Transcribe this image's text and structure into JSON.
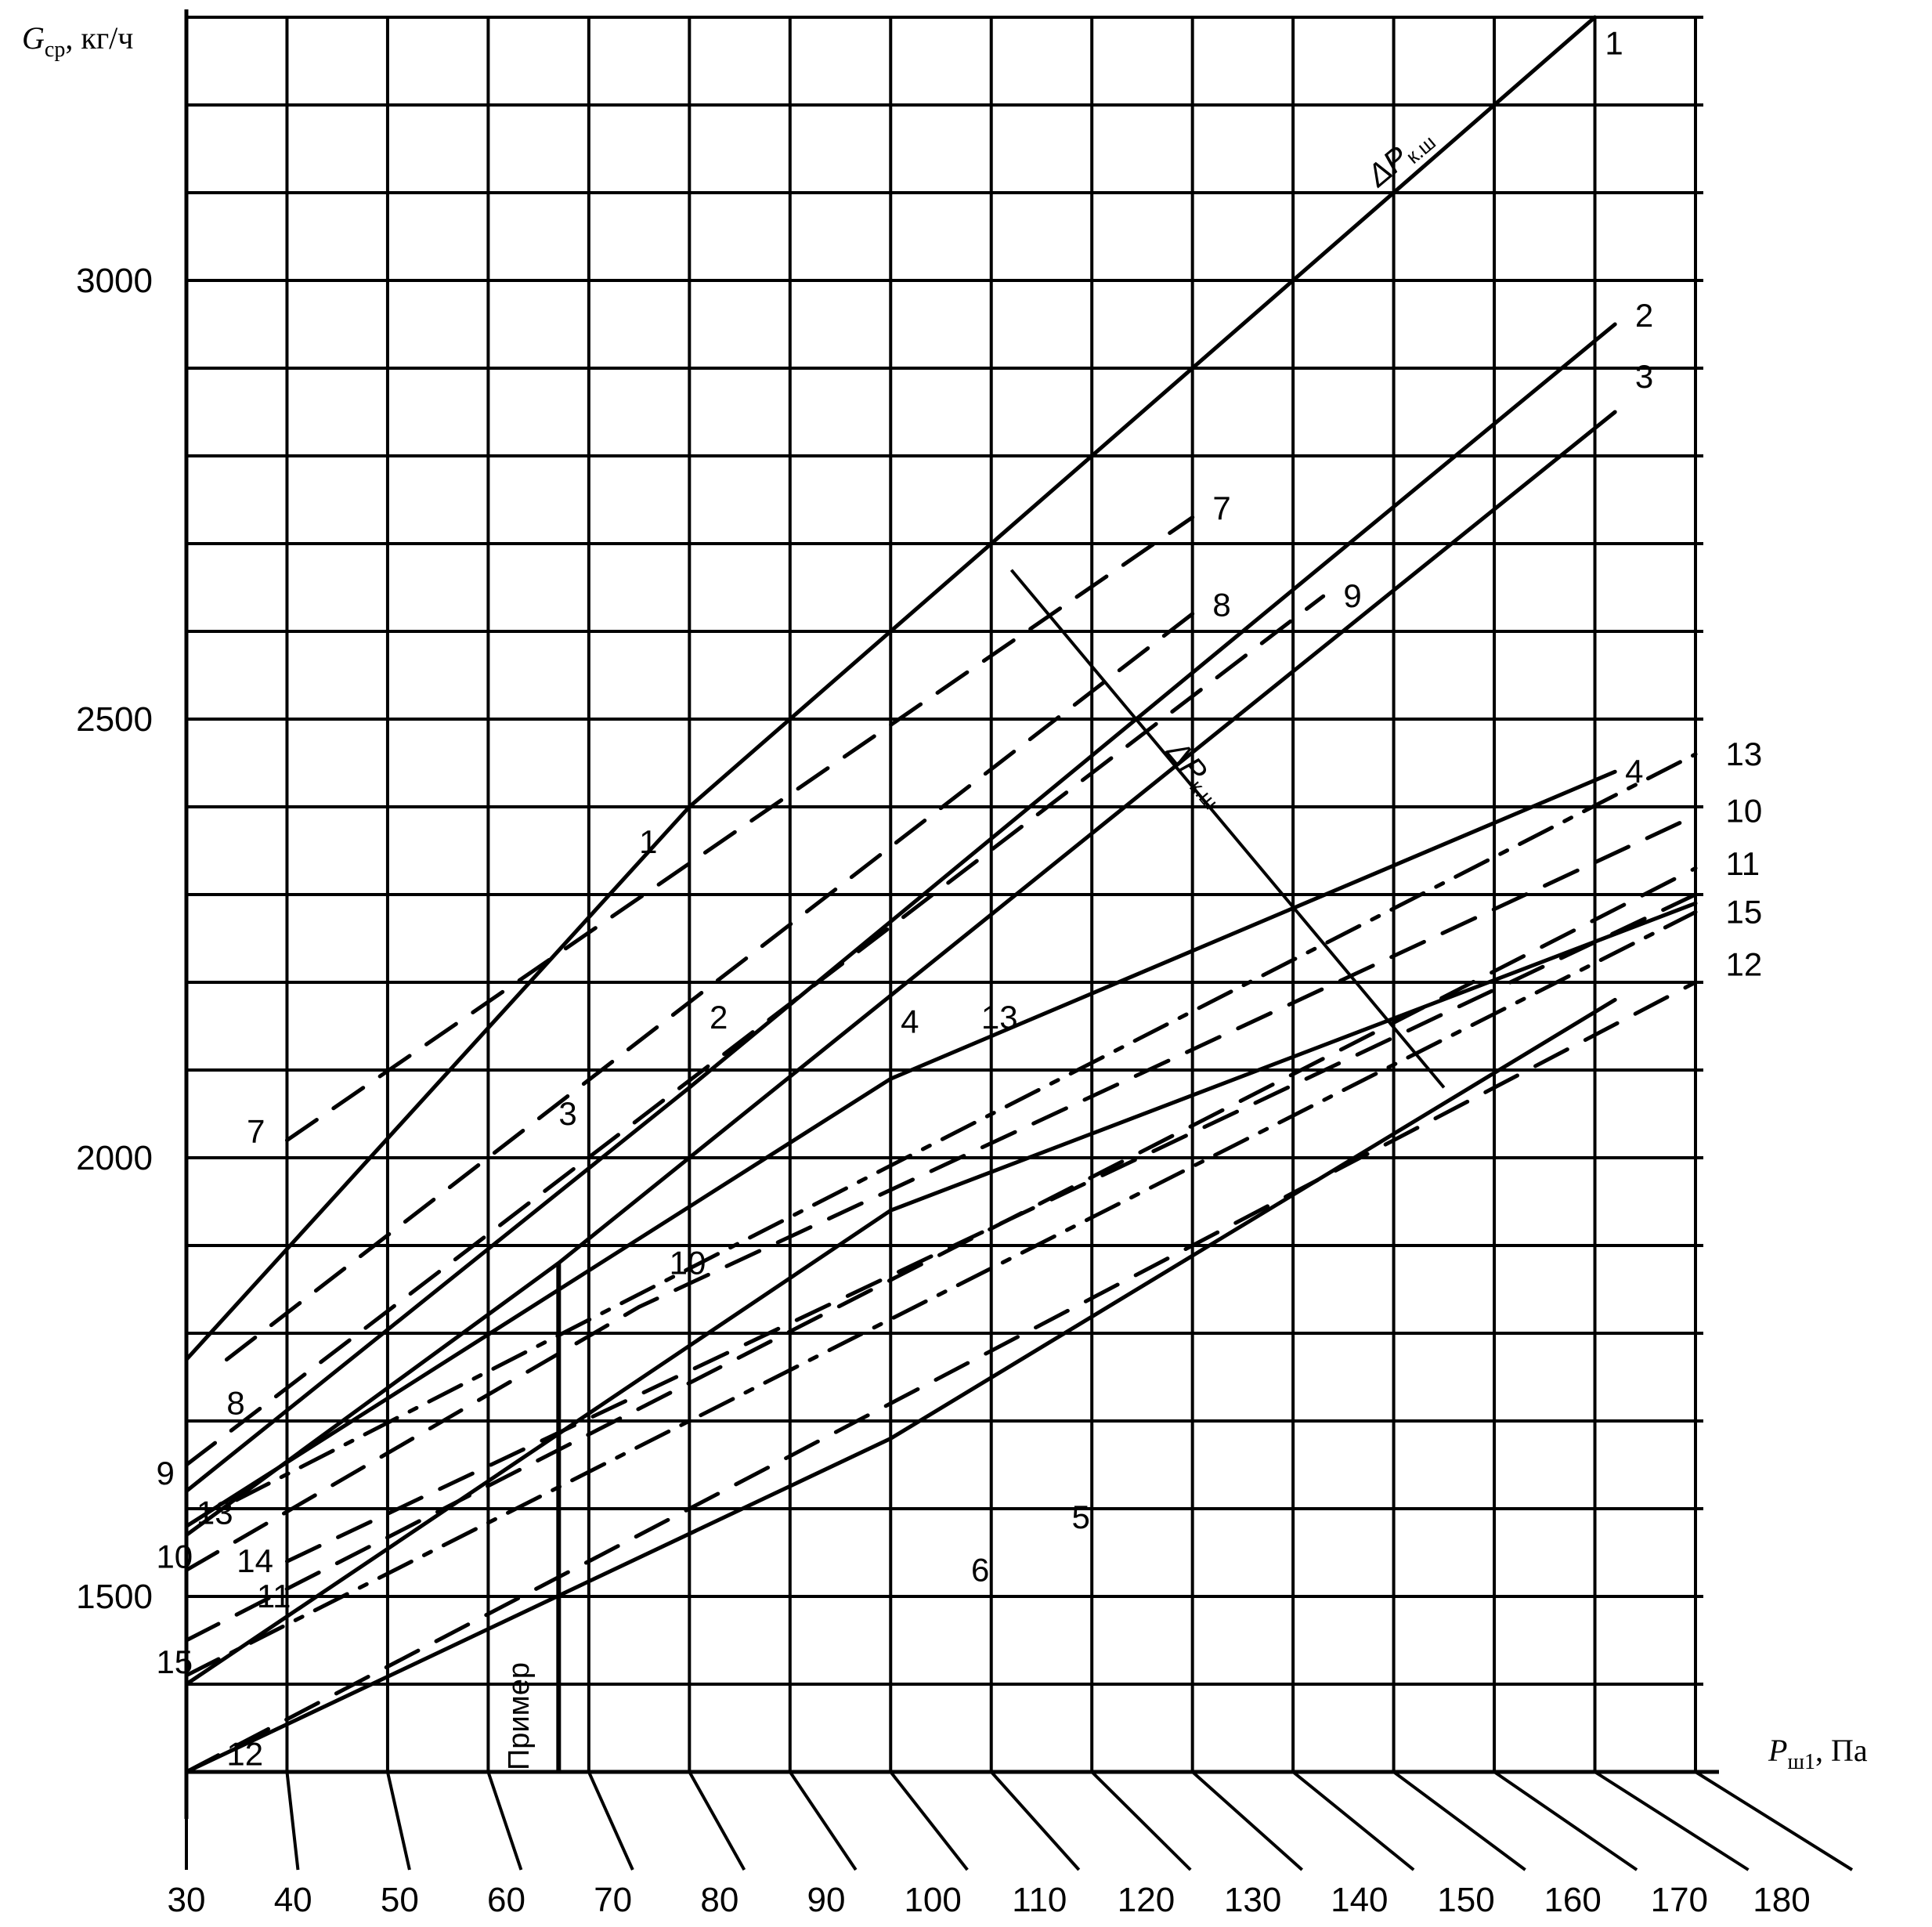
{
  "chart_data": {
    "type": "line",
    "x_axis": {
      "label_symbol": "P",
      "label_subscript": "ш1",
      "label_unit": ", Па",
      "range": [
        30,
        180
      ],
      "ticks": [
        30,
        40,
        50,
        60,
        70,
        80,
        90,
        100,
        110,
        120,
        130,
        140,
        150,
        160,
        170,
        180
      ],
      "tick_labels": [
        "30",
        "40",
        "50",
        "60",
        "70",
        "80",
        "90",
        "100",
        "110",
        "120",
        "130",
        "140",
        "150",
        "160",
        "170",
        "180"
      ]
    },
    "y_axis": {
      "label_symbol": "G",
      "label_subscript": "ср",
      "label_unit": ", кг/ч",
      "range": [
        1300,
        3300
      ],
      "gridline_step": 100,
      "ticks": [
        1500,
        2000,
        2500,
        3000
      ],
      "tick_labels": [
        "1500",
        "2000",
        "2500",
        "3000"
      ]
    },
    "grid": true,
    "series": [
      {
        "name": "1",
        "style": "solid",
        "points": [
          [
            30,
            1770
          ],
          [
            80,
            2400
          ],
          [
            170,
            3300
          ]
        ]
      },
      {
        "name": "2",
        "style": "solid",
        "points": [
          [
            30,
            1620
          ],
          [
            80,
            2080
          ],
          [
            172,
            2950
          ]
        ]
      },
      {
        "name": "3",
        "style": "solid",
        "points": [
          [
            30,
            1570
          ],
          [
            67,
            1880
          ],
          [
            172,
            2850
          ]
        ]
      },
      {
        "name": "4",
        "style": "solid",
        "points": [
          [
            30,
            1580
          ],
          [
            100,
            2090
          ],
          [
            172,
            2440
          ]
        ]
      },
      {
        "name": "5",
        "style": "solid",
        "points": [
          [
            30,
            1400
          ],
          [
            100,
            1940
          ],
          [
            180,
            2290
          ]
        ]
      },
      {
        "name": "6",
        "style": "solid",
        "points": [
          [
            30,
            1300
          ],
          [
            100,
            1680
          ],
          [
            172,
            2180
          ]
        ]
      },
      {
        "name": "7",
        "style": "dashed",
        "points": [
          [
            40,
            2020
          ],
          [
            130,
            2730
          ]
        ]
      },
      {
        "name": "8",
        "style": "dashed",
        "points": [
          [
            34,
            1770
          ],
          [
            130,
            2620
          ]
        ]
      },
      {
        "name": "9",
        "style": "dashed",
        "points": [
          [
            30,
            1650
          ],
          [
            143,
            2640
          ]
        ]
      },
      {
        "name": "10",
        "style": "dashed",
        "points": [
          [
            30,
            1530
          ],
          [
            75,
            1830
          ],
          [
            180,
            2390
          ]
        ]
      },
      {
        "name": "11",
        "style": "dashed",
        "points": [
          [
            30,
            1450
          ],
          [
            180,
            2330
          ]
        ]
      },
      {
        "name": "12",
        "style": "dashed",
        "points": [
          [
            30,
            1300
          ],
          [
            180,
            2200
          ]
        ]
      },
      {
        "name": "13",
        "style": "dash-dot",
        "points": [
          [
            35,
            1610
          ],
          [
            180,
            2460
          ]
        ]
      },
      {
        "name": "14",
        "style": "dashed",
        "points": [
          [
            40,
            1540
          ],
          [
            180,
            2300
          ]
        ]
      },
      {
        "name": "15",
        "style": "dash-dot",
        "points": [
          [
            30,
            1410
          ],
          [
            180,
            2280
          ]
        ]
      }
    ],
    "curve_labels": [
      {
        "text": "1",
        "at": [
          171,
          3270
        ]
      },
      {
        "text": "2",
        "at": [
          174,
          2960
        ]
      },
      {
        "text": "3",
        "at": [
          174,
          2890
        ]
      },
      {
        "text": "4",
        "at": [
          173,
          2440
        ]
      },
      {
        "text": "13",
        "at": [
          183,
          2460
        ]
      },
      {
        "text": "10",
        "at": [
          183,
          2395
        ]
      },
      {
        "text": "11",
        "at": [
          183,
          2335
        ]
      },
      {
        "text": "15",
        "at": [
          183,
          2280
        ]
      },
      {
        "text": "12",
        "at": [
          183,
          2220
        ]
      },
      {
        "text": "7",
        "at": [
          132,
          2740
        ]
      },
      {
        "text": "8",
        "at": [
          132,
          2630
        ]
      },
      {
        "text": "9",
        "at": [
          145,
          2640
        ]
      },
      {
        "text": "7",
        "at": [
          36,
          2030
        ]
      },
      {
        "text": "8",
        "at": [
          34,
          1720
        ]
      },
      {
        "text": "9",
        "at": [
          27,
          1640
        ]
      },
      {
        "text": "13",
        "at": [
          31,
          1595
        ]
      },
      {
        "text": "10",
        "at": [
          27,
          1545
        ]
      },
      {
        "text": "14",
        "at": [
          35,
          1540
        ]
      },
      {
        "text": "11",
        "at": [
          37,
          1500
        ]
      },
      {
        "text": "15",
        "at": [
          27,
          1425
        ]
      },
      {
        "text": "12",
        "at": [
          34,
          1320
        ]
      },
      {
        "text": "1",
        "at": [
          75,
          2360
        ]
      },
      {
        "text": "2",
        "at": [
          82,
          2160
        ]
      },
      {
        "text": "3",
        "at": [
          67,
          2050
        ]
      },
      {
        "text": "4",
        "at": [
          101,
          2155
        ]
      },
      {
        "text": "13",
        "at": [
          109,
          2160
        ]
      },
      {
        "text": "10",
        "at": [
          78,
          1880
        ]
      },
      {
        "text": "5",
        "at": [
          118,
          1590
        ]
      },
      {
        "text": "6",
        "at": [
          108,
          1530
        ]
      }
    ],
    "annotations": [
      {
        "text": "ΔP",
        "subscript": "к.ш",
        "note": "upper diagonal label along curve 1"
      },
      {
        "text": "ΔP",
        "subscript": "к.ш",
        "note": "middle diagonal label across curves"
      },
      {
        "text": "Пример",
        "note": "vertical example line at x≈67"
      }
    ],
    "example_line_x": 67,
    "dp_line": {
      "from": [
        112,
        2670
      ],
      "to": [
        155,
        2080
      ]
    }
  }
}
